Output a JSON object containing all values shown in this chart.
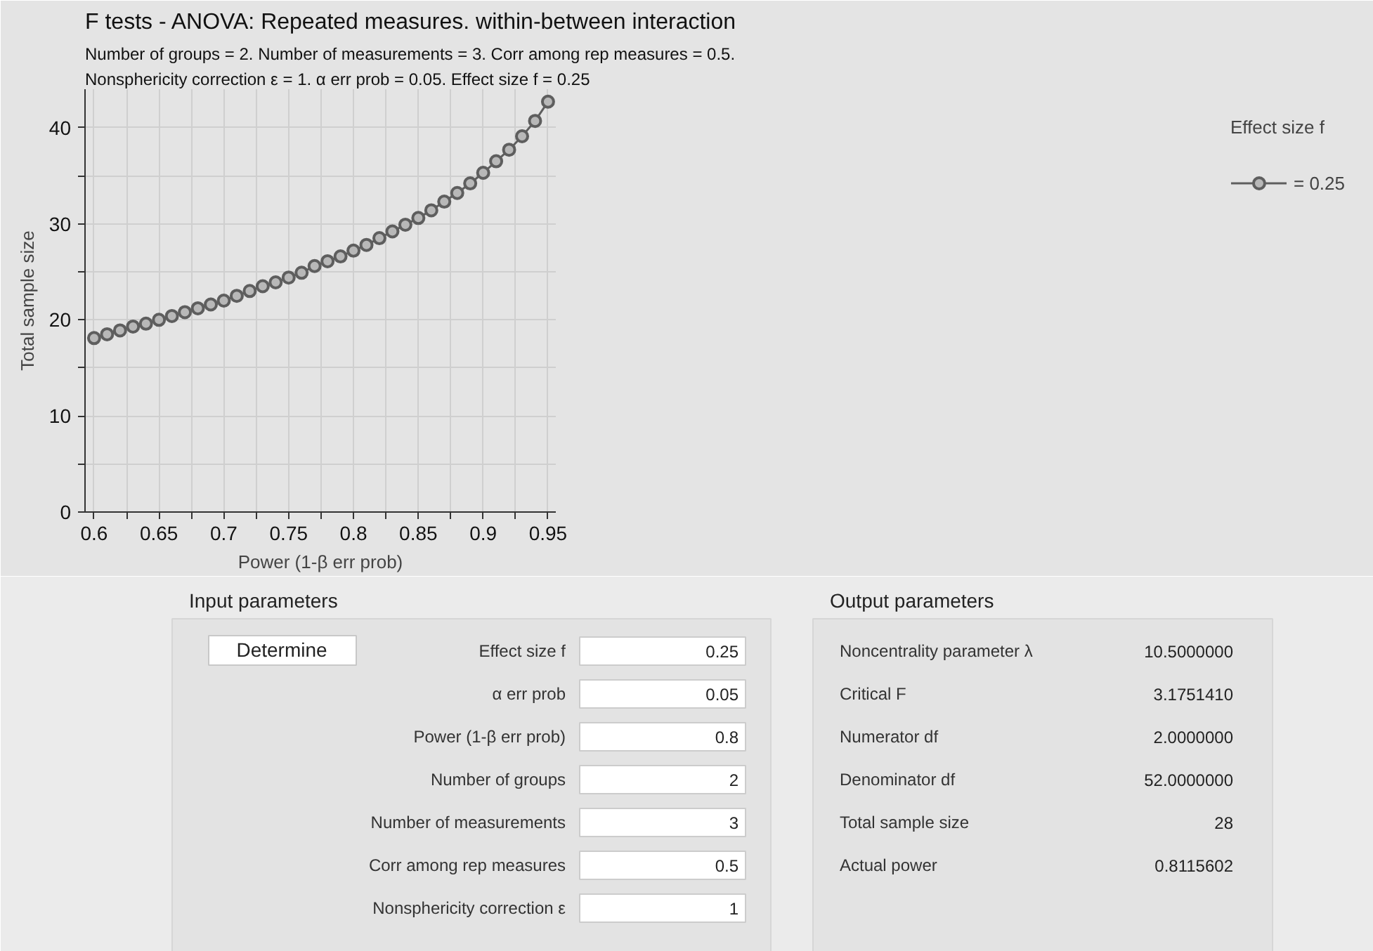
{
  "chart_data": [
    {
      "type": "line",
      "title": "F tests - ANOVA: Repeated measures. within-between interaction",
      "subtitle": "Number of groups = 2. Number of measurements = 3. Corr among rep measures = 0.5.\nNonsphericity correction ε = 1. α err prob = 0.05. Effect size f = 0.25",
      "xlabel": "Power (1-β err prob)",
      "ylabel": "Total sample size",
      "legend_title": "Effect size f",
      "legend": "right",
      "grid": true,
      "marker": "circle",
      "line_style": "solid",
      "x": [
        0.6,
        0.61,
        0.62,
        0.63,
        0.64,
        0.65,
        0.66,
        0.67,
        0.68,
        0.69,
        0.7,
        0.71,
        0.72,
        0.73,
        0.74,
        0.75,
        0.76,
        0.77,
        0.78,
        0.79,
        0.8,
        0.81,
        0.82,
        0.83,
        0.84,
        0.85,
        0.86,
        0.87,
        0.88,
        0.89,
        0.9,
        0.91,
        0.92,
        0.93,
        0.94,
        0.95
      ],
      "series": [
        {
          "name": "= 0.25",
          "color": "#5e5e5e",
          "values": [
            18.1,
            18.5,
            18.9,
            19.3,
            19.6,
            20.0,
            20.4,
            20.8,
            21.2,
            21.6,
            22.0,
            22.5,
            23.0,
            23.5,
            23.9,
            24.4,
            24.9,
            25.6,
            26.1,
            26.6,
            27.2,
            27.8,
            28.5,
            29.2,
            29.9,
            30.6,
            31.4,
            32.3,
            33.2,
            34.2,
            35.3,
            36.5,
            37.7,
            39.1,
            40.7,
            42.7
          ]
        }
      ],
      "xlim": [
        0.593,
        0.956
      ],
      "ylim": [
        0,
        44
      ],
      "xticks": [
        0.6,
        {
          "value": 0.625,
          "label": null
        },
        0.65,
        {
          "value": 0.675,
          "label": null
        },
        0.7,
        {
          "value": 0.725,
          "label": null
        },
        0.75,
        {
          "value": 0.775,
          "label": null
        },
        0.8,
        {
          "value": 0.825,
          "label": null
        },
        0.85,
        {
          "value": 0.875,
          "label": null
        },
        0.9,
        {
          "value": 0.925,
          "label": null
        },
        0.95
      ],
      "yticks": [
        0,
        {
          "value": 5,
          "label": null
        },
        10,
        {
          "value": 15,
          "label": null
        },
        20,
        {
          "value": 25,
          "label": null
        },
        30,
        {
          "value": 35,
          "label": null
        },
        40
      ]
    },
    {
      "type": "other",
      "title": "Input parameters",
      "annotations": [
        "Determine"
      ],
      "categories": [
        "Effect size f",
        "α err prob",
        "Power (1-β err prob)",
        "Number of groups",
        "Number of measurements",
        "Corr among rep measures",
        "Nonsphericity correction ε"
      ],
      "value_labels": [
        "0.25",
        "0.05",
        "0.8",
        "2",
        "3",
        "0.5",
        "1"
      ]
    },
    {
      "type": "other",
      "title": "Output parameters",
      "categories": [
        "Noncentrality parameter λ",
        "Critical F",
        "Numerator df",
        "Denominator df",
        "Total sample size",
        "Actual power"
      ],
      "value_labels": [
        "10.5000000",
        "3.1751410",
        "2.0000000",
        "52.0000000",
        "28",
        "0.8115602"
      ]
    }
  ]
}
